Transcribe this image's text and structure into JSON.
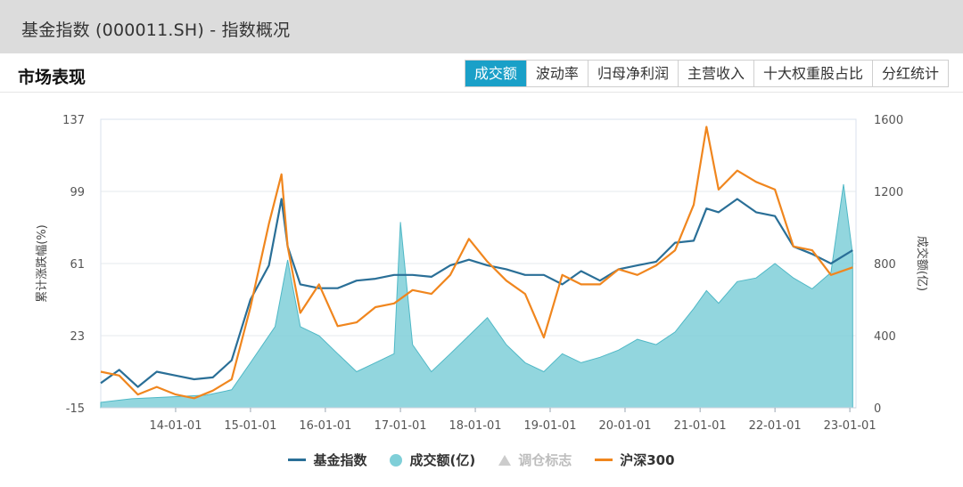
{
  "header": {
    "title": "基金指数 (000011.SH) - 指数概况"
  },
  "section": {
    "title": "市场表现",
    "tabs": [
      {
        "label": "成交额",
        "active": true
      },
      {
        "label": "波动率",
        "active": false
      },
      {
        "label": "归母净利润",
        "active": false
      },
      {
        "label": "主营收入",
        "active": false
      },
      {
        "label": "十大权重股占比",
        "active": false
      },
      {
        "label": "分红统计",
        "active": false
      }
    ]
  },
  "colors": {
    "fund_index": "#2a6f97",
    "hs300": "#f0861e",
    "volume": "#7fcfd8",
    "volume_stroke": "#4fb8c6",
    "tab_active": "#1aa0c8"
  },
  "chart_data": {
    "type": "line",
    "ylabel_left": "累计涨跌幅(%)",
    "ylabel_right": "成交额(亿)",
    "y_left_ticks": [
      "137",
      "99",
      "61",
      "23",
      "-15"
    ],
    "y_left_range": [
      -15,
      137
    ],
    "y_right_ticks": [
      "1600",
      "1200",
      "800",
      "400",
      "0"
    ],
    "y_right_range": [
      0,
      1600
    ],
    "x_ticks": [
      "14-01-01",
      "15-01-01",
      "16-01-01",
      "17-01-01",
      "18-01-01",
      "19-01-01",
      "20-01-01",
      "21-01-01",
      "22-01-01",
      "23-01-01"
    ],
    "x_range": [
      "2013-01-01",
      "2023-01-31"
    ],
    "legend": [
      {
        "name": "基金指数",
        "marker": "line",
        "dim": false
      },
      {
        "name": "成交额(亿)",
        "marker": "dot",
        "dim": false
      },
      {
        "name": "调仓标志",
        "marker": "triangle",
        "dim": true
      },
      {
        "name": "沪深300",
        "marker": "line",
        "dim": false
      }
    ],
    "series": [
      {
        "name": "基金指数",
        "axis": "left",
        "x": [
          "2013-01-01",
          "2013-04-01",
          "2013-07-01",
          "2013-10-01",
          "2014-01-01",
          "2014-04-01",
          "2014-07-01",
          "2014-10-01",
          "2015-01-01",
          "2015-04-01",
          "2015-06-01",
          "2015-07-01",
          "2015-09-01",
          "2015-12-01",
          "2016-03-01",
          "2016-06-01",
          "2016-09-01",
          "2016-12-01",
          "2017-03-01",
          "2017-06-01",
          "2017-09-01",
          "2017-12-01",
          "2018-03-01",
          "2018-06-01",
          "2018-09-01",
          "2018-12-01",
          "2019-03-01",
          "2019-06-01",
          "2019-09-01",
          "2019-12-01",
          "2020-03-01",
          "2020-06-01",
          "2020-09-01",
          "2020-12-01",
          "2021-02-01",
          "2021-04-01",
          "2021-07-01",
          "2021-10-01",
          "2022-01-01",
          "2022-04-01",
          "2022-07-01",
          "2022-10-01",
          "2023-01-15"
        ],
        "values": [
          -2,
          5,
          -4,
          4,
          2,
          0,
          1,
          10,
          42,
          60,
          95,
          70,
          50,
          48,
          48,
          52,
          53,
          55,
          55,
          54,
          60,
          63,
          60,
          58,
          55,
          55,
          50,
          57,
          52,
          58,
          60,
          62,
          72,
          73,
          90,
          88,
          95,
          88,
          86,
          70,
          66,
          61,
          68
        ]
      },
      {
        "name": "沪深300",
        "axis": "left",
        "x": [
          "2013-01-01",
          "2013-04-01",
          "2013-07-01",
          "2013-10-01",
          "2014-01-01",
          "2014-04-01",
          "2014-07-01",
          "2014-10-01",
          "2015-01-01",
          "2015-04-01",
          "2015-06-01",
          "2015-07-01",
          "2015-09-01",
          "2015-12-01",
          "2016-03-01",
          "2016-06-01",
          "2016-09-01",
          "2016-12-01",
          "2017-03-01",
          "2017-06-01",
          "2017-09-01",
          "2017-12-01",
          "2018-03-01",
          "2018-06-01",
          "2018-09-01",
          "2018-12-01",
          "2019-03-01",
          "2019-06-01",
          "2019-09-01",
          "2019-12-01",
          "2020-03-01",
          "2020-06-01",
          "2020-09-01",
          "2020-12-01",
          "2021-02-01",
          "2021-04-01",
          "2021-07-01",
          "2021-10-01",
          "2022-01-01",
          "2022-04-01",
          "2022-07-01",
          "2022-10-01",
          "2023-01-15"
        ],
        "values": [
          4,
          2,
          -8,
          -4,
          -8,
          -10,
          -6,
          0,
          38,
          82,
          108,
          70,
          35,
          50,
          28,
          30,
          38,
          40,
          47,
          45,
          55,
          74,
          62,
          52,
          45,
          22,
          55,
          50,
          50,
          58,
          55,
          60,
          68,
          92,
          133,
          100,
          110,
          104,
          100,
          70,
          68,
          55,
          59
        ]
      },
      {
        "name": "成交额(亿)",
        "axis": "right",
        "type": "area",
        "x": [
          "2013-01-01",
          "2013-06-01",
          "2013-12-01",
          "2014-06-01",
          "2014-10-01",
          "2015-01-01",
          "2015-05-01",
          "2015-07-01",
          "2015-09-01",
          "2015-12-01",
          "2016-03-01",
          "2016-06-01",
          "2016-09-01",
          "2016-12-01",
          "2017-01-01",
          "2017-03-01",
          "2017-06-01",
          "2017-09-01",
          "2017-12-01",
          "2018-03-01",
          "2018-06-01",
          "2018-09-01",
          "2018-12-01",
          "2019-03-01",
          "2019-06-01",
          "2019-09-01",
          "2019-12-01",
          "2020-03-01",
          "2020-06-01",
          "2020-09-01",
          "2020-12-01",
          "2021-02-01",
          "2021-04-01",
          "2021-07-01",
          "2021-10-01",
          "2022-01-01",
          "2022-04-01",
          "2022-07-01",
          "2022-10-01",
          "2022-12-01",
          "2023-01-15"
        ],
        "values": [
          30,
          50,
          60,
          70,
          100,
          250,
          450,
          820,
          450,
          400,
          300,
          200,
          250,
          300,
          1030,
          350,
          200,
          300,
          400,
          500,
          350,
          250,
          200,
          300,
          250,
          280,
          320,
          380,
          350,
          420,
          550,
          650,
          580,
          700,
          720,
          800,
          720,
          660,
          750,
          1240,
          850
        ]
      }
    ]
  }
}
